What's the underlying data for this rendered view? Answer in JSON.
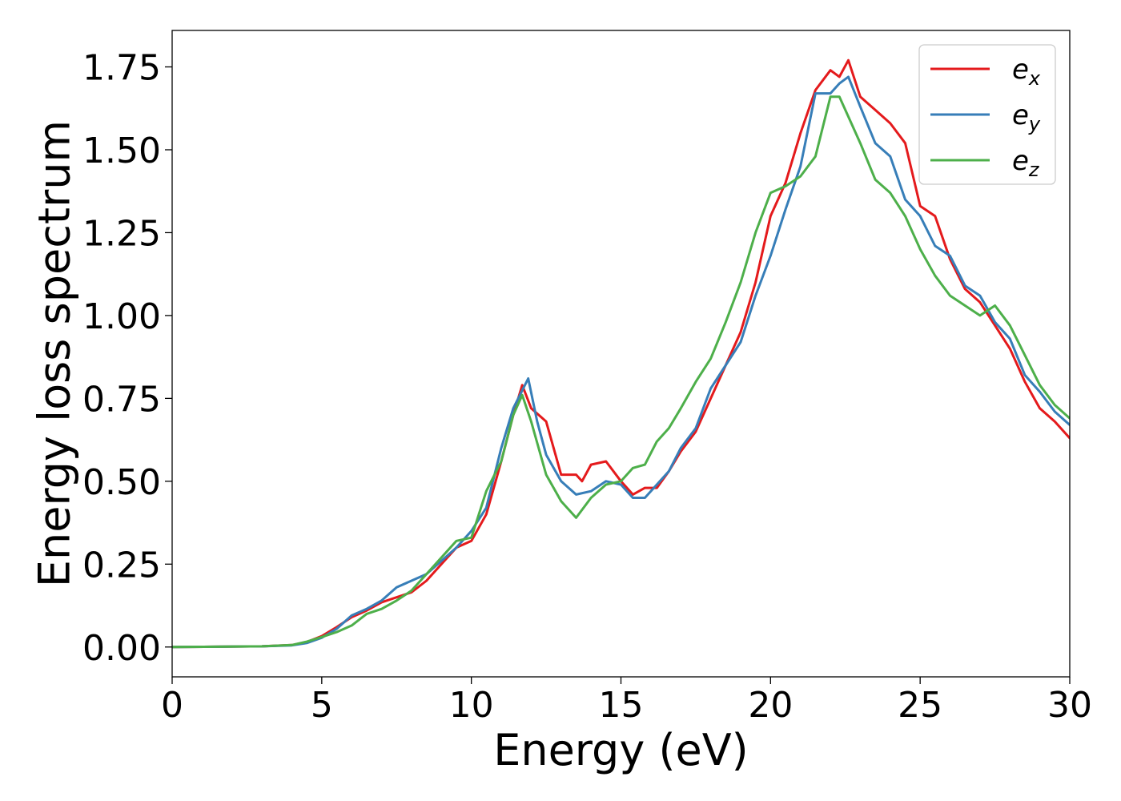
{
  "chart_data": {
    "type": "line",
    "title": "",
    "xlabel": "Energy (eV)",
    "ylabel": "Energy loss spectrum",
    "xlim": [
      0,
      30
    ],
    "ylim": [
      -0.09,
      1.86
    ],
    "xticks": [
      0,
      5,
      10,
      15,
      20,
      25,
      30
    ],
    "xtick_labels": [
      "0",
      "5",
      "10",
      "15",
      "20",
      "25",
      "30"
    ],
    "yticks": [
      0.0,
      0.25,
      0.5,
      0.75,
      1.0,
      1.25,
      1.5,
      1.75
    ],
    "ytick_labels": [
      "0.00",
      "0.25",
      "0.50",
      "0.75",
      "1.00",
      "1.25",
      "1.50",
      "1.75"
    ],
    "grid": false,
    "legend_position": "top-right",
    "series": [
      {
        "name": "e",
        "subscript": "x",
        "color": "#e41a1c",
        "points": [
          [
            0,
            0
          ],
          [
            3,
            0.002
          ],
          [
            4,
            0.006
          ],
          [
            4.5,
            0.015
          ],
          [
            5,
            0.033
          ],
          [
            5.5,
            0.06
          ],
          [
            6,
            0.09
          ],
          [
            6.5,
            0.11
          ],
          [
            7,
            0.135
          ],
          [
            7.5,
            0.15
          ],
          [
            8,
            0.165
          ],
          [
            8.5,
            0.2
          ],
          [
            9,
            0.25
          ],
          [
            9.5,
            0.3
          ],
          [
            10,
            0.32
          ],
          [
            10.5,
            0.4
          ],
          [
            11,
            0.56
          ],
          [
            11.4,
            0.7
          ],
          [
            11.7,
            0.79
          ],
          [
            12,
            0.72
          ],
          [
            12.5,
            0.68
          ],
          [
            13,
            0.52
          ],
          [
            13.5,
            0.52
          ],
          [
            13.7,
            0.5
          ],
          [
            14,
            0.55
          ],
          [
            14.5,
            0.56
          ],
          [
            15,
            0.5
          ],
          [
            15.4,
            0.46
          ],
          [
            15.8,
            0.48
          ],
          [
            16.2,
            0.48
          ],
          [
            16.6,
            0.53
          ],
          [
            17,
            0.59
          ],
          [
            17.5,
            0.65
          ],
          [
            18,
            0.75
          ],
          [
            18.5,
            0.85
          ],
          [
            19,
            0.95
          ],
          [
            19.5,
            1.1
          ],
          [
            20,
            1.3
          ],
          [
            20.5,
            1.4
          ],
          [
            21,
            1.55
          ],
          [
            21.5,
            1.68
          ],
          [
            22,
            1.74
          ],
          [
            22.3,
            1.72
          ],
          [
            22.6,
            1.77
          ],
          [
            23,
            1.66
          ],
          [
            23.5,
            1.62
          ],
          [
            24,
            1.58
          ],
          [
            24.5,
            1.52
          ],
          [
            25,
            1.33
          ],
          [
            25.5,
            1.3
          ],
          [
            26,
            1.17
          ],
          [
            26.5,
            1.08
          ],
          [
            27,
            1.04
          ],
          [
            27.5,
            0.97
          ],
          [
            28,
            0.9
          ],
          [
            28.5,
            0.8
          ],
          [
            29,
            0.72
          ],
          [
            29.5,
            0.68
          ],
          [
            30,
            0.63
          ]
        ]
      },
      {
        "name": "e",
        "subscript": "y",
        "color": "#377eb8",
        "points": [
          [
            0,
            0
          ],
          [
            3,
            0.002
          ],
          [
            4,
            0.005
          ],
          [
            4.5,
            0.012
          ],
          [
            5,
            0.028
          ],
          [
            5.5,
            0.055
          ],
          [
            6,
            0.095
          ],
          [
            6.5,
            0.115
          ],
          [
            7,
            0.14
          ],
          [
            7.5,
            0.18
          ],
          [
            8,
            0.2
          ],
          [
            8.5,
            0.22
          ],
          [
            9,
            0.26
          ],
          [
            9.5,
            0.3
          ],
          [
            10,
            0.35
          ],
          [
            10.5,
            0.42
          ],
          [
            11,
            0.6
          ],
          [
            11.4,
            0.72
          ],
          [
            11.9,
            0.81
          ],
          [
            12.2,
            0.68
          ],
          [
            12.5,
            0.58
          ],
          [
            13,
            0.5
          ],
          [
            13.5,
            0.46
          ],
          [
            14,
            0.47
          ],
          [
            14.5,
            0.5
          ],
          [
            15,
            0.49
          ],
          [
            15.4,
            0.45
          ],
          [
            15.8,
            0.45
          ],
          [
            16.2,
            0.49
          ],
          [
            16.6,
            0.53
          ],
          [
            17,
            0.6
          ],
          [
            17.5,
            0.66
          ],
          [
            18,
            0.78
          ],
          [
            18.5,
            0.85
          ],
          [
            19,
            0.92
          ],
          [
            19.5,
            1.06
          ],
          [
            20,
            1.18
          ],
          [
            20.5,
            1.32
          ],
          [
            21,
            1.45
          ],
          [
            21.5,
            1.67
          ],
          [
            22,
            1.67
          ],
          [
            22.3,
            1.7
          ],
          [
            22.6,
            1.72
          ],
          [
            23,
            1.63
          ],
          [
            23.5,
            1.52
          ],
          [
            24,
            1.48
          ],
          [
            24.5,
            1.35
          ],
          [
            25,
            1.3
          ],
          [
            25.5,
            1.21
          ],
          [
            26,
            1.18
          ],
          [
            26.5,
            1.09
          ],
          [
            27,
            1.06
          ],
          [
            27.5,
            0.98
          ],
          [
            28,
            0.93
          ],
          [
            28.5,
            0.82
          ],
          [
            29,
            0.77
          ],
          [
            29.5,
            0.71
          ],
          [
            30,
            0.67
          ]
        ]
      },
      {
        "name": "e",
        "subscript": "z",
        "color": "#4daf4a",
        "points": [
          [
            0,
            0
          ],
          [
            3,
            0.002
          ],
          [
            4,
            0.006
          ],
          [
            4.5,
            0.016
          ],
          [
            5,
            0.03
          ],
          [
            5.5,
            0.045
          ],
          [
            6,
            0.065
          ],
          [
            6.5,
            0.1
          ],
          [
            7,
            0.115
          ],
          [
            7.5,
            0.14
          ],
          [
            8,
            0.17
          ],
          [
            8.5,
            0.22
          ],
          [
            9,
            0.27
          ],
          [
            9.5,
            0.32
          ],
          [
            10,
            0.33
          ],
          [
            10.5,
            0.47
          ],
          [
            11,
            0.56
          ],
          [
            11.4,
            0.7
          ],
          [
            11.7,
            0.76
          ],
          [
            12,
            0.68
          ],
          [
            12.5,
            0.52
          ],
          [
            13,
            0.44
          ],
          [
            13.5,
            0.39
          ],
          [
            14,
            0.45
          ],
          [
            14.5,
            0.49
          ],
          [
            15,
            0.5
          ],
          [
            15.4,
            0.54
          ],
          [
            15.8,
            0.55
          ],
          [
            16.2,
            0.62
          ],
          [
            16.6,
            0.66
          ],
          [
            17,
            0.72
          ],
          [
            17.5,
            0.8
          ],
          [
            18,
            0.87
          ],
          [
            18.5,
            0.98
          ],
          [
            19,
            1.1
          ],
          [
            19.5,
            1.25
          ],
          [
            20,
            1.37
          ],
          [
            20.5,
            1.39
          ],
          [
            21,
            1.42
          ],
          [
            21.5,
            1.48
          ],
          [
            22,
            1.66
          ],
          [
            22.3,
            1.66
          ],
          [
            22.6,
            1.6
          ],
          [
            23,
            1.52
          ],
          [
            23.5,
            1.41
          ],
          [
            24,
            1.37
          ],
          [
            24.5,
            1.3
          ],
          [
            25,
            1.2
          ],
          [
            25.5,
            1.12
          ],
          [
            26,
            1.06
          ],
          [
            26.5,
            1.03
          ],
          [
            27,
            1.0
          ],
          [
            27.5,
            1.03
          ],
          [
            28,
            0.97
          ],
          [
            28.5,
            0.88
          ],
          [
            29,
            0.79
          ],
          [
            29.5,
            0.73
          ],
          [
            30,
            0.69
          ]
        ]
      }
    ]
  }
}
